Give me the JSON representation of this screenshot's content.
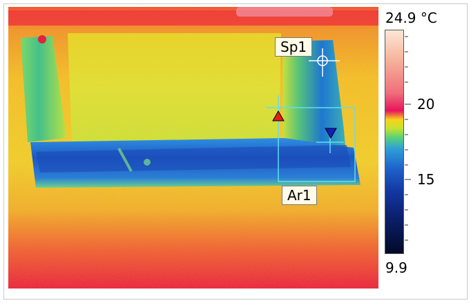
{
  "scale": {
    "max_label": "24.9 °C",
    "min_label": "9.9",
    "ticks": [
      "20",
      "15"
    ]
  },
  "markers": {
    "spot_label": "Sp1",
    "area_label": "Ar1"
  },
  "colors": {
    "hot_marker": "#e0201a",
    "cold_marker": "#1020c0",
    "overlay": "#5fe0f0"
  }
}
